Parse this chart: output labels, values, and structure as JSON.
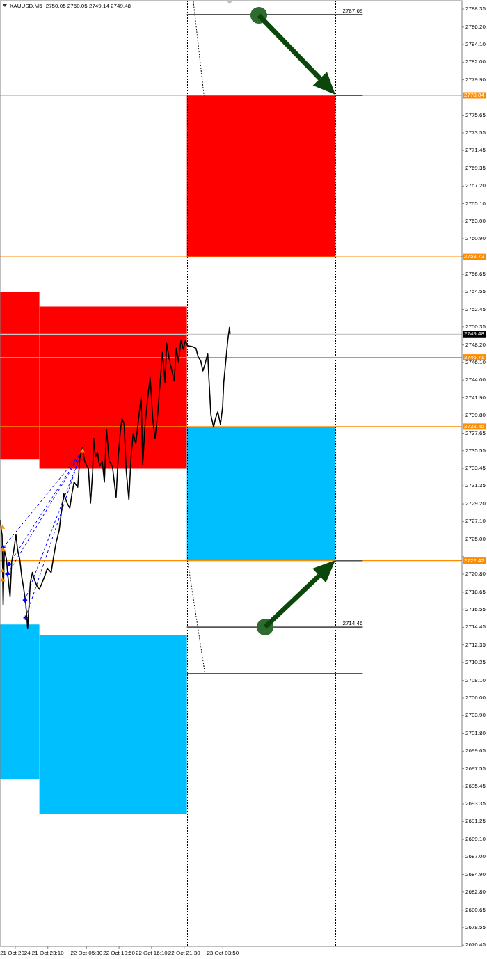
{
  "chart_data": {
    "type": "line",
    "title": "XAUUSD,M5",
    "subtitle": "2750.05 2750.05 2749.14 2749.48",
    "xlim": [
      "2024-10-21T15:20",
      "2024-10-24T19:00"
    ],
    "xticks": [
      {
        "value": "2024-10-21T17:50",
        "label": "21 Oct 2024"
      },
      {
        "value": "2024-10-21T23:10",
        "label": "21 Oct 23:10"
      },
      {
        "value": "2024-10-22T05:30",
        "label": "22 Oct 05:30"
      },
      {
        "value": "2024-10-22T10:50",
        "label": "22 Oct 10:50"
      },
      {
        "value": "2024-10-22T16:10",
        "label": "22 Oct 16:10"
      },
      {
        "value": "2024-10-22T21:30",
        "label": "22 Oct 21:30"
      },
      {
        "value": "2024-10-23T03:50",
        "label": "23 Oct 03:50"
      }
    ],
    "ylim": [
      2676.3,
      2789.35
    ],
    "yticks": [
      {
        "value": 2788.35,
        "label": "2788.35"
      },
      {
        "value": 2786.2,
        "label": "2786.20"
      },
      {
        "value": 2784.1,
        "label": "2784.10"
      },
      {
        "value": 2782.0,
        "label": "2782.00"
      },
      {
        "value": 2779.9,
        "label": "2779.90"
      },
      {
        "value": 2777.8,
        "label": null
      },
      {
        "value": 2775.65,
        "label": "2775.65"
      },
      {
        "value": 2773.55,
        "label": "2773.55"
      },
      {
        "value": 2771.45,
        "label": "2771.45"
      },
      {
        "value": 2769.35,
        "label": "2769.35"
      },
      {
        "value": 2767.2,
        "label": "2767.20"
      },
      {
        "value": 2765.1,
        "label": "2765.10"
      },
      {
        "value": 2763.0,
        "label": "2763.00"
      },
      {
        "value": 2760.9,
        "label": "2760.90"
      },
      {
        "value": 2758.8,
        "label": null
      },
      {
        "value": 2756.65,
        "label": "2756.65"
      },
      {
        "value": 2754.55,
        "label": "2754.55"
      },
      {
        "value": 2752.45,
        "label": "2752.45"
      },
      {
        "value": 2750.35,
        "label": "2750.35"
      },
      {
        "value": 2748.2,
        "label": "2748.20"
      },
      {
        "value": 2746.1,
        "label": "2746.10"
      },
      {
        "value": 2744.0,
        "label": "2744.00"
      },
      {
        "value": 2741.9,
        "label": "2741.90"
      },
      {
        "value": 2739.8,
        "label": "2739.80"
      },
      {
        "value": 2737.65,
        "label": "2737.65"
      },
      {
        "value": 2735.55,
        "label": "2735.55"
      },
      {
        "value": 2733.45,
        "label": "2733.45"
      },
      {
        "value": 2731.35,
        "label": "2731.35"
      },
      {
        "value": 2729.2,
        "label": "2729.20"
      },
      {
        "value": 2727.1,
        "label": "2727.10"
      },
      {
        "value": 2725.0,
        "label": "2725.00"
      },
      {
        "value": 2722.9,
        "label": null
      },
      {
        "value": 2720.8,
        "label": "2720.80"
      },
      {
        "value": 2718.65,
        "label": "2718.65"
      },
      {
        "value": 2716.55,
        "label": "2716.55"
      },
      {
        "value": 2714.45,
        "label": "2714.45"
      },
      {
        "value": 2712.35,
        "label": "2712.35"
      },
      {
        "value": 2710.25,
        "label": "2710.25"
      },
      {
        "value": 2708.1,
        "label": "2708.10"
      },
      {
        "value": 2706.0,
        "label": "2706.00"
      },
      {
        "value": 2703.9,
        "label": "2703.90"
      },
      {
        "value": 2701.8,
        "label": "2701.80"
      },
      {
        "value": 2699.65,
        "label": "2699.65"
      },
      {
        "value": 2697.55,
        "label": "2697.55"
      },
      {
        "value": 2695.45,
        "label": "2695.45"
      },
      {
        "value": 2693.35,
        "label": "2693.35"
      },
      {
        "value": 2691.25,
        "label": "2691.25"
      },
      {
        "value": 2689.1,
        "label": "2689.10"
      },
      {
        "value": 2687.0,
        "label": "2687.00"
      },
      {
        "value": 2684.9,
        "label": "2684.90"
      },
      {
        "value": 2682.8,
        "label": "2682.80"
      },
      {
        "value": 2680.65,
        "label": "2680.65"
      },
      {
        "value": 2678.55,
        "label": "2678.55"
      },
      {
        "value": 2676.45,
        "label": "2676.45"
      }
    ],
    "series": [
      {
        "type": "area",
        "color": "#ff0000",
        "x": [
          "2024-10-21T15:20",
          "2024-10-21T21:47"
        ],
        "lower": [
          2734.5,
          2734.5
        ],
        "upper": [
          2754.5,
          2754.5
        ],
        "values": [
          null,
          null
        ]
      },
      {
        "type": "area",
        "color": "#ff0000",
        "x": [
          "2024-10-21T21:47",
          "2024-10-22T21:57"
        ],
        "lower": [
          2733.4,
          2733.4
        ],
        "upper": [
          2752.8,
          2752.8
        ],
        "values": [
          null,
          null
        ]
      },
      {
        "type": "area",
        "color": "#ff0000",
        "x": [
          "2024-10-22T21:57",
          "2024-10-23T22:18"
        ],
        "lower": [
          2758.73,
          2758.73
        ],
        "upper": [
          2778.04,
          2778.04
        ],
        "values": [
          null,
          null
        ]
      },
      {
        "type": "area",
        "color": "#00bfff",
        "x": [
          "2024-10-22T21:57",
          "2024-10-23T22:18"
        ],
        "lower": [
          2722.42,
          2722.42
        ],
        "upper": [
          2738.45,
          2738.45
        ],
        "values": [
          null,
          null
        ]
      },
      {
        "type": "area",
        "color": "#00bfff",
        "x": [
          "2024-10-21T15:20",
          "2024-10-21T21:47"
        ],
        "lower": [
          2696.3,
          2696.3
        ],
        "upper": [
          2714.8,
          2714.8
        ],
        "values": [
          null,
          null
        ]
      },
      {
        "type": "area",
        "color": "#00bfff",
        "x": [
          "2024-10-21T21:47",
          "2024-10-22T21:57"
        ],
        "lower": [
          2692.1,
          2692.1
        ],
        "upper": [
          2713.5,
          2713.5
        ],
        "values": [
          null,
          null
        ]
      },
      {
        "color": "#555555",
        "x": [
          "2024-10-22T21:57",
          "2024-10-24T02:45"
        ],
        "values": [
          2787.69,
          2787.69
        ]
      },
      {
        "color": "#555555",
        "x": [
          "2024-10-23T22:18",
          "2024-10-24T02:45"
        ],
        "values": [
          2778.04,
          2778.04
        ]
      },
      {
        "color": "#555555",
        "x": [
          "2024-10-23T22:18",
          "2024-10-24T02:45"
        ],
        "values": [
          2722.42,
          2722.42
        ]
      },
      {
        "color": "#555555",
        "x": [
          "2024-10-22T21:57",
          "2024-10-24T02:45"
        ],
        "values": [
          2714.46,
          2714.46
        ]
      },
      {
        "color": "#555555",
        "x": [
          "2024-10-22T21:57",
          "2024-10-24T02:45"
        ],
        "values": [
          2708.9,
          2708.9
        ]
      },
      {
        "color": "#000000",
        "line_style": "dotted",
        "x": [
          "2024-10-22T23:00",
          "2024-10-23T00:45"
        ],
        "values": [
          2789.3,
          2778.0
        ]
      },
      {
        "color": "#000000",
        "line_style": "dotted",
        "x": [
          "2024-10-22T22:03",
          "2024-10-23T00:55"
        ],
        "values": [
          2722.4,
          2708.9
        ]
      },
      {
        "color": "#0000ff",
        "line_style": "dashed",
        "x": [
          "2024-10-21T15:51",
          "2024-10-22T04:41"
        ],
        "values": [
          2724.0,
          2735.4
        ]
      },
      {
        "color": "#0000ff",
        "line_style": "dashed",
        "x": [
          "2024-10-21T16:49",
          "2024-10-22T04:41"
        ],
        "values": [
          2722.0,
          2735.4
        ]
      },
      {
        "color": "#0000ff",
        "line_style": "dashed",
        "x": [
          "2024-10-21T16:33",
          "2024-10-22T04:36"
        ],
        "values": [
          2720.8,
          2735.2
        ]
      },
      {
        "color": "#0000ff",
        "line_style": "dashed",
        "x": [
          "2024-10-21T19:26",
          "2024-10-22T04:36"
        ],
        "values": [
          2717.7,
          2735.2
        ]
      },
      {
        "color": "#0000ff",
        "line_style": "dashed",
        "x": [
          "2024-10-21T19:31",
          "2024-10-22T04:30"
        ],
        "values": [
          2715.6,
          2735.0
        ]
      },
      {
        "color": "#000000",
        "x": [
          "2024-10-21T15:20",
          "2024-10-21T15:41",
          "2024-10-21T15:51",
          "2024-10-21T16:02",
          "2024-10-21T16:23",
          "2024-10-21T16:39",
          "2024-10-21T16:59",
          "2024-10-21T17:15",
          "2024-10-21T17:36",
          "2024-10-21T17:57",
          "2024-10-21T18:13",
          "2024-10-21T18:34",
          "2024-10-21T18:55",
          "2024-10-21T19:10",
          "2024-10-21T19:31",
          "2024-10-21T19:52",
          "2024-10-21T20:18",
          "2024-10-21T20:39",
          "2024-10-21T21:00",
          "2024-10-21T21:26",
          "2024-10-21T21:47",
          "2024-10-21T22:08",
          "2024-10-21T22:34",
          "2024-10-21T23:06",
          "2024-10-21T23:43",
          "2024-10-22T00:03",
          "2024-10-22T00:30",
          "2024-10-22T01:01",
          "2024-10-22T01:22",
          "2024-10-22T01:48",
          "2024-10-22T02:20",
          "2024-10-22T02:46",
          "2024-10-22T03:07",
          "2024-10-22T03:28",
          "2024-10-22T04:04",
          "2024-10-22T04:25",
          "2024-10-22T04:51",
          "2024-10-22T05:12",
          "2024-10-22T05:49",
          "2024-10-22T06:10",
          "2024-10-22T06:31",
          "2024-10-22T06:41",
          "2024-10-22T06:57",
          "2024-10-22T07:18",
          "2024-10-22T07:39",
          "2024-10-22T08:05",
          "2024-10-22T08:26",
          "2024-10-22T08:47",
          "2024-10-22T09:13",
          "2024-10-22T09:45",
          "2024-10-22T10:21",
          "2024-10-22T10:42",
          "2024-10-22T11:03",
          "2024-10-22T11:19",
          "2024-10-22T11:40",
          "2024-10-22T12:01",
          "2024-10-22T12:27",
          "2024-10-22T12:48",
          "2024-10-22T13:09",
          "2024-10-22T13:35",
          "2024-10-22T14:06",
          "2024-10-22T14:27",
          "2024-10-22T14:43",
          "2024-10-22T15:04",
          "2024-10-22T15:40",
          "2024-10-22T15:56",
          "2024-10-22T16:22",
          "2024-10-22T16:43",
          "2024-10-22T17:09",
          "2024-10-22T17:30",
          "2024-10-22T17:57",
          "2024-10-22T18:23",
          "2024-10-22T18:38",
          "2024-10-22T19:05",
          "2024-10-22T19:26",
          "2024-10-22T19:52",
          "2024-10-22T20:13",
          "2024-10-22T20:34",
          "2024-10-22T21:00",
          "2024-10-22T21:21",
          "2024-10-22T21:42",
          "2024-10-22T22:03",
          "2024-10-22T22:50",
          "2024-10-22T23:26",
          "2024-10-22T23:47",
          "2024-10-23T00:13",
          "2024-10-23T00:34",
          "2024-10-23T00:55",
          "2024-10-23T01:22",
          "2024-10-23T01:32",
          "2024-10-23T01:42",
          "2024-10-23T01:53",
          "2024-10-23T02:19",
          "2024-10-23T02:40",
          "2024-10-23T03:01",
          "2024-10-23T03:27",
          "2024-10-23T03:48",
          "2024-10-23T03:59",
          "2024-10-23T04:25",
          "2024-10-23T04:40",
          "2024-10-23T04:56",
          "2024-10-23T05:01"
        ],
        "values": [
          2727.3,
          2725.4,
          2717.1,
          2723.7,
          2722.6,
          2720.4,
          2718.1,
          2722.3,
          2723.7,
          2725.5,
          2723.7,
          2722.6,
          2720.4,
          2719.3,
          2717.6,
          2714.3,
          2719.8,
          2721.0,
          2720.1,
          2719.3,
          2719.0,
          2719.6,
          2720.4,
          2721.5,
          2721.0,
          2722.6,
          2724.5,
          2726.0,
          2728.1,
          2730.4,
          2729.3,
          2728.7,
          2730.4,
          2731.8,
          2731.2,
          2734.8,
          2735.9,
          2734.3,
          2733.4,
          2729.3,
          2733.1,
          2737.0,
          2734.8,
          2735.4,
          2733.7,
          2734.3,
          2731.8,
          2738.1,
          2734.3,
          2733.7,
          2730.0,
          2734.8,
          2737.9,
          2739.4,
          2738.7,
          2733.1,
          2729.7,
          2734.8,
          2737.6,
          2736.4,
          2739.8,
          2742.0,
          2733.9,
          2738.4,
          2742.8,
          2744.3,
          2739.3,
          2737.0,
          2739.8,
          2743.1,
          2747.3,
          2743.7,
          2748.4,
          2746.4,
          2745.3,
          2743.9,
          2747.8,
          2746.2,
          2748.8,
          2747.7,
          2748.7,
          2748.1,
          2748.0,
          2747.8,
          2746.8,
          2746.3,
          2745.1,
          2745.9,
          2747.2,
          2744.5,
          2742.3,
          2739.8,
          2738.4,
          2739.5,
          2740.2,
          2738.7,
          2740.8,
          2743.7,
          2747.0,
          2748.9,
          2750.3,
          2749.5
        ]
      },
      {
        "type": "scatter",
        "color": "#0000ff",
        "marker": "cross",
        "x": [
          "2024-10-21T15:51",
          "2024-10-21T16:49",
          "2024-10-21T16:33",
          "2024-10-21T19:26",
          "2024-10-21T19:31"
        ],
        "values": [
          2724.0,
          2722.0,
          2720.8,
          2717.7,
          2715.6
        ]
      },
      {
        "type": "scatter",
        "color": "#ff8c00",
        "marker": "triangle",
        "x": [
          "2024-10-21T15:46",
          "2024-10-21T15:46",
          "2024-10-21T15:46",
          "2024-10-21T15:46",
          "2024-10-22T04:51"
        ],
        "values": [
          2726.4,
          2723.7,
          2721.2,
          2720.1,
          2735.5
        ]
      }
    ],
    "ref_lines": [
      {
        "axis": "x",
        "value": "2024-10-21T21:47",
        "color": "#000000",
        "line_style": "dotted"
      },
      {
        "axis": "x",
        "value": "2024-10-22T21:57",
        "color": "#000000",
        "line_style": "dotted"
      },
      {
        "axis": "x",
        "value": "2024-10-23T22:18",
        "color": "#000000",
        "line_style": "dotted"
      },
      {
        "axis": "y",
        "value": 2778.04,
        "label": "2778.04",
        "color": "#ff8c00"
      },
      {
        "axis": "y",
        "value": 2758.73,
        "label": "2758.73",
        "color": "#ff8c00"
      },
      {
        "axis": "y",
        "value": 2746.71,
        "label": "2746.71",
        "color": "#ff8c00"
      },
      {
        "axis": "y",
        "value": 2738.45,
        "label": "2738.45",
        "color": "#ff8c00"
      },
      {
        "axis": "y",
        "value": 2722.42,
        "label": "2722.42",
        "color": "#ff8c00"
      },
      {
        "axis": "y",
        "value": 2749.48,
        "label": "2749.48",
        "color": "#c8c8c8"
      }
    ],
    "annotations": [
      {
        "text": "2787.69",
        "x": "2024-10-24T02:45",
        "y": 2787.69
      },
      {
        "text": "2714.46",
        "x": "2024-10-24T02:45",
        "y": 2714.46
      }
    ]
  }
}
